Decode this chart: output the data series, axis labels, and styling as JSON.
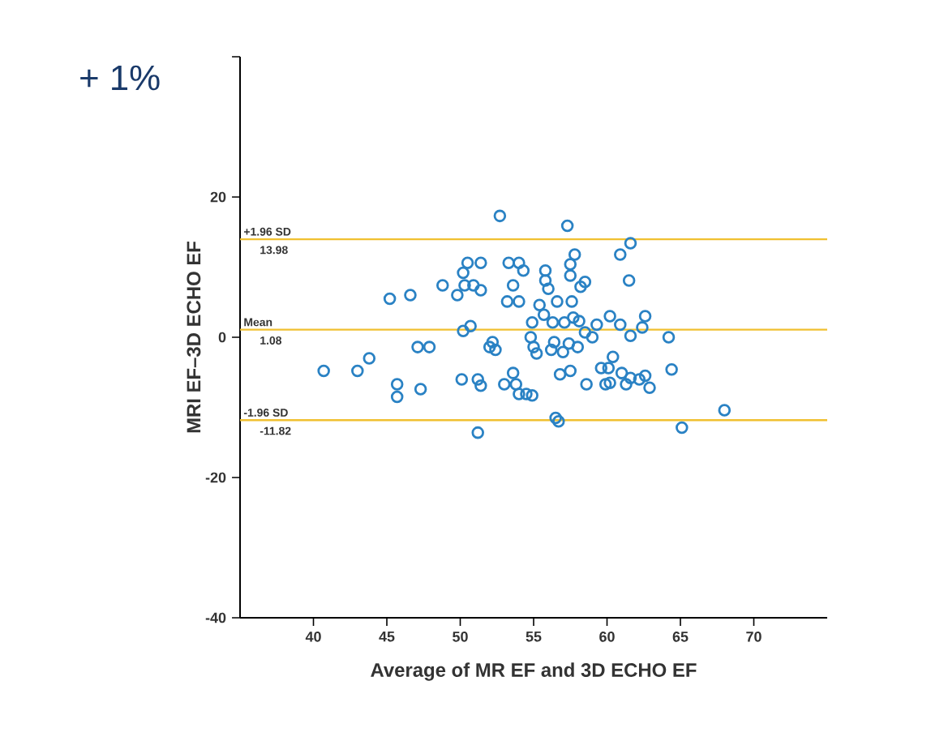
{
  "chart_data": {
    "type": "scatter",
    "xlabel": "Average of MR EF and 3D ECHO EF",
    "ylabel": "MRI EF–3D ECHO EF",
    "annotations": [
      "+ 1%",
      {
        "text": "13.98",
        "y": 13.98
      },
      {
        "text": "1.08",
        "y": 1.08
      },
      {
        "text": "-11.82",
        "y": -11.82
      }
    ],
    "xlim": [
      35,
      75
    ],
    "xticks": [
      40,
      45,
      50,
      55,
      60,
      65,
      70
    ],
    "ylim": [
      -40,
      40
    ],
    "yticks": [
      -40,
      -20,
      0,
      20,
      {
        "value": 40,
        "label": null
      }
    ],
    "marker": "circle",
    "ref_lines": [
      {
        "axis": "y",
        "value": 13.98,
        "label": "+1.96 SD",
        "color": "#f0c030"
      },
      {
        "axis": "y",
        "value": 1.08,
        "label": "Mean",
        "color": "#f0c030"
      },
      {
        "axis": "y",
        "value": -11.82,
        "label": "-1.96 SD",
        "color": "#f0c030"
      }
    ],
    "series": [
      {
        "color": "#2a82c4",
        "x": [
          40.7,
          43,
          43.8,
          45.2,
          46.6,
          45.7,
          45.7,
          47.3,
          47.1,
          47.9,
          48.8,
          49.8,
          50.3,
          50.2,
          50.5,
          51.4,
          50.9,
          51.4,
          50.2,
          50.7,
          50.1,
          51.2,
          51.4,
          51.2,
          52,
          52.2,
          52.4,
          52.7,
          53.3,
          54,
          54.3,
          53.6,
          53.2,
          54,
          53,
          53.8,
          54,
          54.5,
          54.9,
          53.6,
          54.9,
          54.8,
          55,
          55.2,
          55.8,
          56,
          55.8,
          56.6,
          55.4,
          55.7,
          56.3,
          57.1,
          56.4,
          56.2,
          57,
          57.3,
          57.5,
          57.8,
          57.5,
          58.2,
          58.5,
          57.6,
          57.7,
          58.1,
          57.4,
          58,
          58.5,
          56.8,
          57.5,
          56.7,
          56.5,
          58.6,
          59,
          59.6,
          60.1,
          59.9,
          60.2,
          60.4,
          60.9,
          61.6,
          61,
          61.6,
          62.2,
          61.3,
          60.9,
          61.6,
          61.5,
          62.6,
          62.9,
          62.4,
          62.6,
          64.2,
          64.4,
          65.1,
          68,
          60.2,
          59.3
        ],
        "values": [
          -4.8,
          -4.8,
          -3,
          5.5,
          6,
          -6.7,
          -8.5,
          -7.4,
          -1.4,
          -1.4,
          7.4,
          6,
          7.4,
          9.2,
          10.6,
          10.6,
          7.4,
          6.7,
          0.9,
          1.6,
          -6,
          -6,
          -6.9,
          -13.6,
          -1.4,
          -0.7,
          -1.8,
          17.3,
          10.6,
          10.6,
          9.5,
          7.4,
          5.1,
          5.1,
          -6.7,
          -6.7,
          -8.1,
          -8.1,
          -8.3,
          -5.1,
          2.1,
          0,
          -1.4,
          -2.3,
          8.1,
          6.9,
          9.5,
          5.1,
          4.6,
          3.2,
          2.1,
          2.1,
          -0.7,
          -1.8,
          -2.1,
          15.9,
          8.8,
          11.8,
          10.4,
          7.2,
          7.9,
          5.1,
          2.8,
          2.3,
          -0.9,
          -1.4,
          0.7,
          -5.3,
          -4.8,
          -12,
          -11.5,
          -6.7,
          0,
          -4.4,
          -4.4,
          -6.7,
          -6.5,
          -2.8,
          1.8,
          0.2,
          -5.1,
          -5.8,
          -6,
          -6.7,
          11.8,
          13.4,
          8.1,
          -5.5,
          -7.2,
          1.4,
          3,
          0,
          -4.6,
          -12.9,
          -10.4,
          3,
          1.8
        ]
      }
    ]
  }
}
